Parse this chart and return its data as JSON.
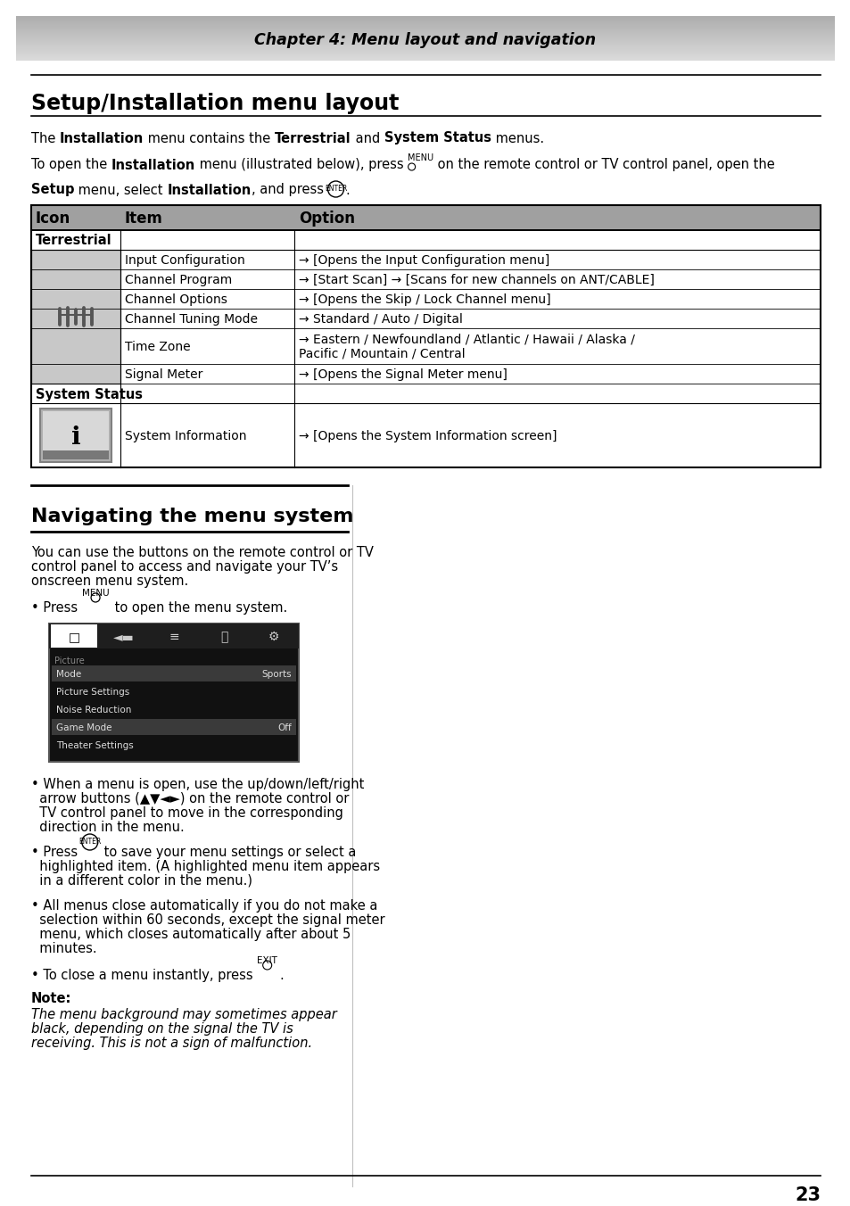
{
  "page_bg": "#ffffff",
  "header_text": "Chapter 4: Menu layout and navigation",
  "title1": "Setup/Installation menu layout",
  "title2": "Navigating the menu system",
  "table_header_bg": "#a0a0a0",
  "table_border": "#000000",
  "table_cols": [
    "Icon",
    "Item",
    "Option"
  ],
  "page_number": "23",
  "nav_para1_line1": "You can use the buttons on the remote control or TV",
  "nav_para1_line2": "control panel to access and navigate your TV’s",
  "nav_para1_line3": "onscreen menu system.",
  "nav_b2_line1": "• When a menu is open, use the up/down/left/right",
  "nav_b2_line2": "  arrow buttons (▲▼◄►) on the remote control or",
  "nav_b2_line3": "  TV control panel to move in the corresponding",
  "nav_b2_line4": "  direction in the menu.",
  "nav_b4_line1": "• All menus close automatically if you do not make a",
  "nav_b4_line2": "  selection within 60 seconds, except the signal meter",
  "nav_b4_line3": "  menu, which closes automatically after about 5",
  "nav_b4_line4": "  minutes.",
  "note_title": "Note:",
  "note_line1": "The menu background may sometimes appear",
  "note_line2": "black, depending on the signal the TV is",
  "note_line3": "receiving. This is not a sign of malfunction."
}
